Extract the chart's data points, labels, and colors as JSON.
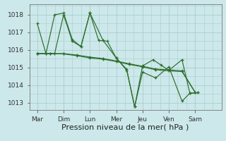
{
  "background_color": "#cce8ea",
  "grid_color": "#aacccc",
  "line_color": "#2d6e2d",
  "xlabel": "Pression niveau de la mer( hPa )",
  "xlabel_fontsize": 8,
  "ylim": [
    1012.6,
    1018.6
  ],
  "yticks": [
    1013,
    1014,
    1015,
    1016,
    1017,
    1018
  ],
  "xtick_labels": [
    "Mar",
    "Dim",
    "Lun",
    "Mer",
    "Jeu",
    "Ven",
    "Sam"
  ],
  "xlim": [
    -0.3,
    7.0
  ],
  "day_positions": [
    0,
    1,
    2,
    3,
    4,
    5,
    6
  ],
  "series0_x": [
    0.0,
    0.33,
    0.66,
    1.0,
    1.33,
    1.66,
    2.0,
    2.5,
    3.0,
    3.4,
    3.7,
    4.0,
    4.5,
    5.0,
    5.5,
    5.8,
    6.1
  ],
  "series0_y": [
    1017.5,
    1015.8,
    1018.0,
    1018.1,
    1016.6,
    1016.2,
    1018.1,
    1016.55,
    1015.55,
    1014.85,
    1012.78,
    1014.75,
    1014.42,
    1015.05,
    1013.1,
    1013.55,
    1013.58
  ],
  "series1_x": [
    0.0,
    0.33,
    0.66,
    1.0,
    1.33,
    1.66,
    2.0,
    2.33,
    2.66,
    3.0,
    3.4,
    3.7,
    4.0,
    4.4,
    4.7,
    5.0,
    5.5,
    5.8,
    6.1
  ],
  "series1_y": [
    1015.8,
    1015.8,
    1015.8,
    1018.0,
    1016.5,
    1016.2,
    1018.1,
    1016.55,
    1016.5,
    1015.55,
    1014.9,
    1012.78,
    1015.1,
    1015.45,
    1015.15,
    1014.85,
    1015.45,
    1013.55,
    1013.58
  ],
  "series2_x": [
    0.0,
    0.5,
    1.0,
    1.5,
    2.0,
    2.5,
    3.0,
    3.5,
    4.0,
    4.5,
    5.0,
    5.5,
    6.0
  ],
  "series2_y": [
    1015.8,
    1015.8,
    1015.78,
    1015.68,
    1015.55,
    1015.48,
    1015.35,
    1015.18,
    1015.05,
    1014.88,
    1014.82,
    1014.78,
    1013.6
  ],
  "series3_x": [
    0.0,
    0.5,
    1.0,
    1.5,
    2.0,
    2.5,
    3.0,
    3.5,
    4.0,
    4.5,
    5.0,
    5.5,
    6.0
  ],
  "series3_y": [
    1015.8,
    1015.8,
    1015.8,
    1015.72,
    1015.6,
    1015.52,
    1015.38,
    1015.22,
    1015.08,
    1014.92,
    1014.88,
    1014.82,
    1013.6
  ]
}
